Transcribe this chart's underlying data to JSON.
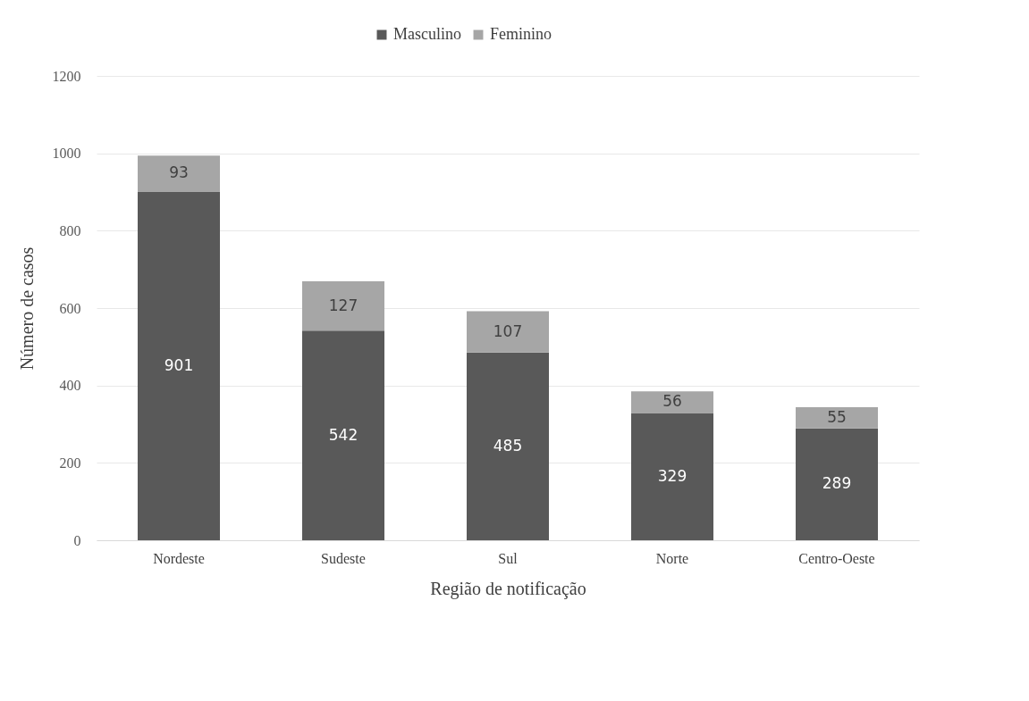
{
  "chart_data": {
    "type": "bar",
    "stacked": true,
    "xlabel": "Região de notificação",
    "ylabel": "Número de casos",
    "categories": [
      "Nordeste",
      "Sudeste",
      "Sul",
      "Norte",
      "Centro-Oeste"
    ],
    "series": [
      {
        "name": "Masculino",
        "color": "#595959",
        "values": [
          901,
          542,
          485,
          329,
          289
        ]
      },
      {
        "name": "Feminino",
        "color": "#a6a6a6",
        "values": [
          93,
          127,
          107,
          56,
          55
        ]
      }
    ],
    "ylim": [
      0,
      1200
    ],
    "yticks": [
      0,
      200,
      400,
      600,
      800,
      1000,
      1200
    ],
    "grid": "y",
    "legend": "top",
    "data_labels": true
  }
}
